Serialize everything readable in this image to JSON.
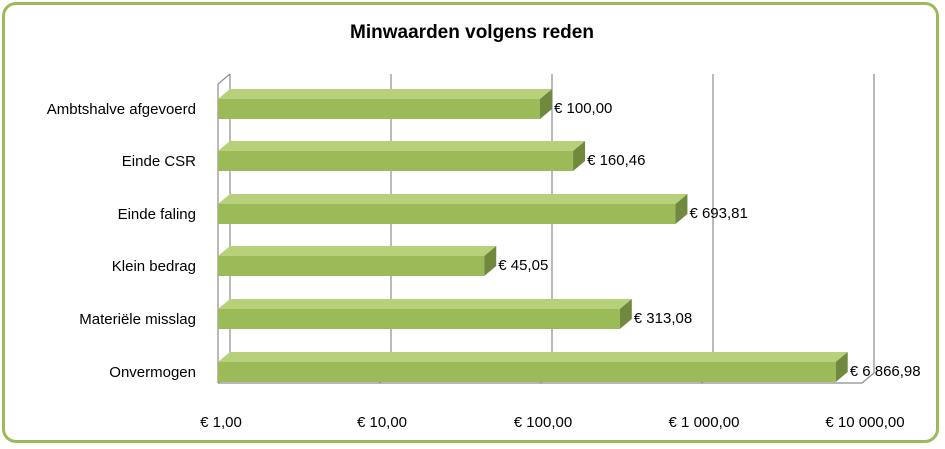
{
  "chart_data": {
    "type": "bar",
    "orientation": "horizontal",
    "title": "Minwaarden volgens reden",
    "categories": [
      "Ambtshalve afgevoerd",
      "Einde CSR",
      "Einde faling",
      "Klein bedrag",
      "Materiële misslag",
      "Onvermogen"
    ],
    "values": [
      100.0,
      160.46,
      693.81,
      45.05,
      313.08,
      6866.98
    ],
    "value_labels": [
      "€  100,00",
      "€  160,46",
      "€  693,81",
      "€  45,05",
      "€  313,08",
      "€ 6 866,98"
    ],
    "x_scale": "log",
    "xlim": [
      1,
      10000
    ],
    "x_ticks": [
      1,
      10,
      100,
      1000,
      10000
    ],
    "x_tick_labels": [
      "€  1,00",
      "€  10,00",
      "€  100,00",
      "€ 1 000,00",
      "€ 10 000,00"
    ],
    "grid": true,
    "legend": "none",
    "style": "3d-bar",
    "colors": {
      "bar_front": "#9bbb59",
      "bar_top": "#b7d07a",
      "bar_side": "#71893f",
      "frame": "#9bbb59",
      "grid": "#8c8c8c"
    }
  }
}
